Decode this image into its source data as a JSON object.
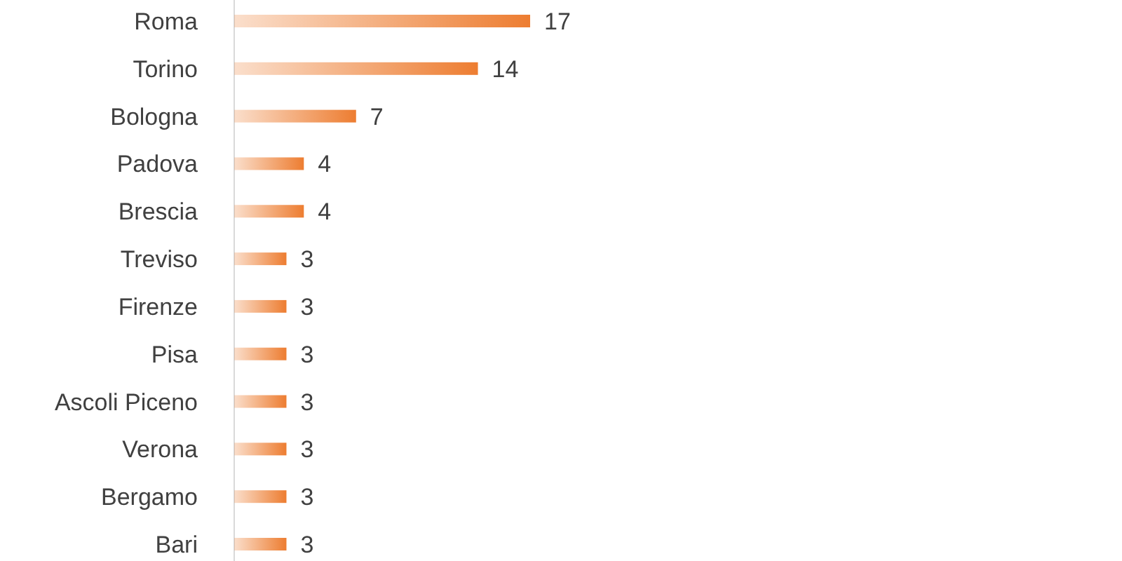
{
  "chart_data": {
    "type": "bar",
    "orientation": "horizontal",
    "categories": [
      "Roma",
      "Torino",
      "Bologna",
      "Padova",
      "Brescia",
      "Treviso",
      "Firenze",
      "Pisa",
      "Ascoli Piceno",
      "Verona",
      "Bergamo",
      "Bari"
    ],
    "values": [
      17,
      14,
      7,
      4,
      4,
      3,
      3,
      3,
      3,
      3,
      3,
      3
    ],
    "color": "#ed7d31",
    "data_labels": true
  }
}
